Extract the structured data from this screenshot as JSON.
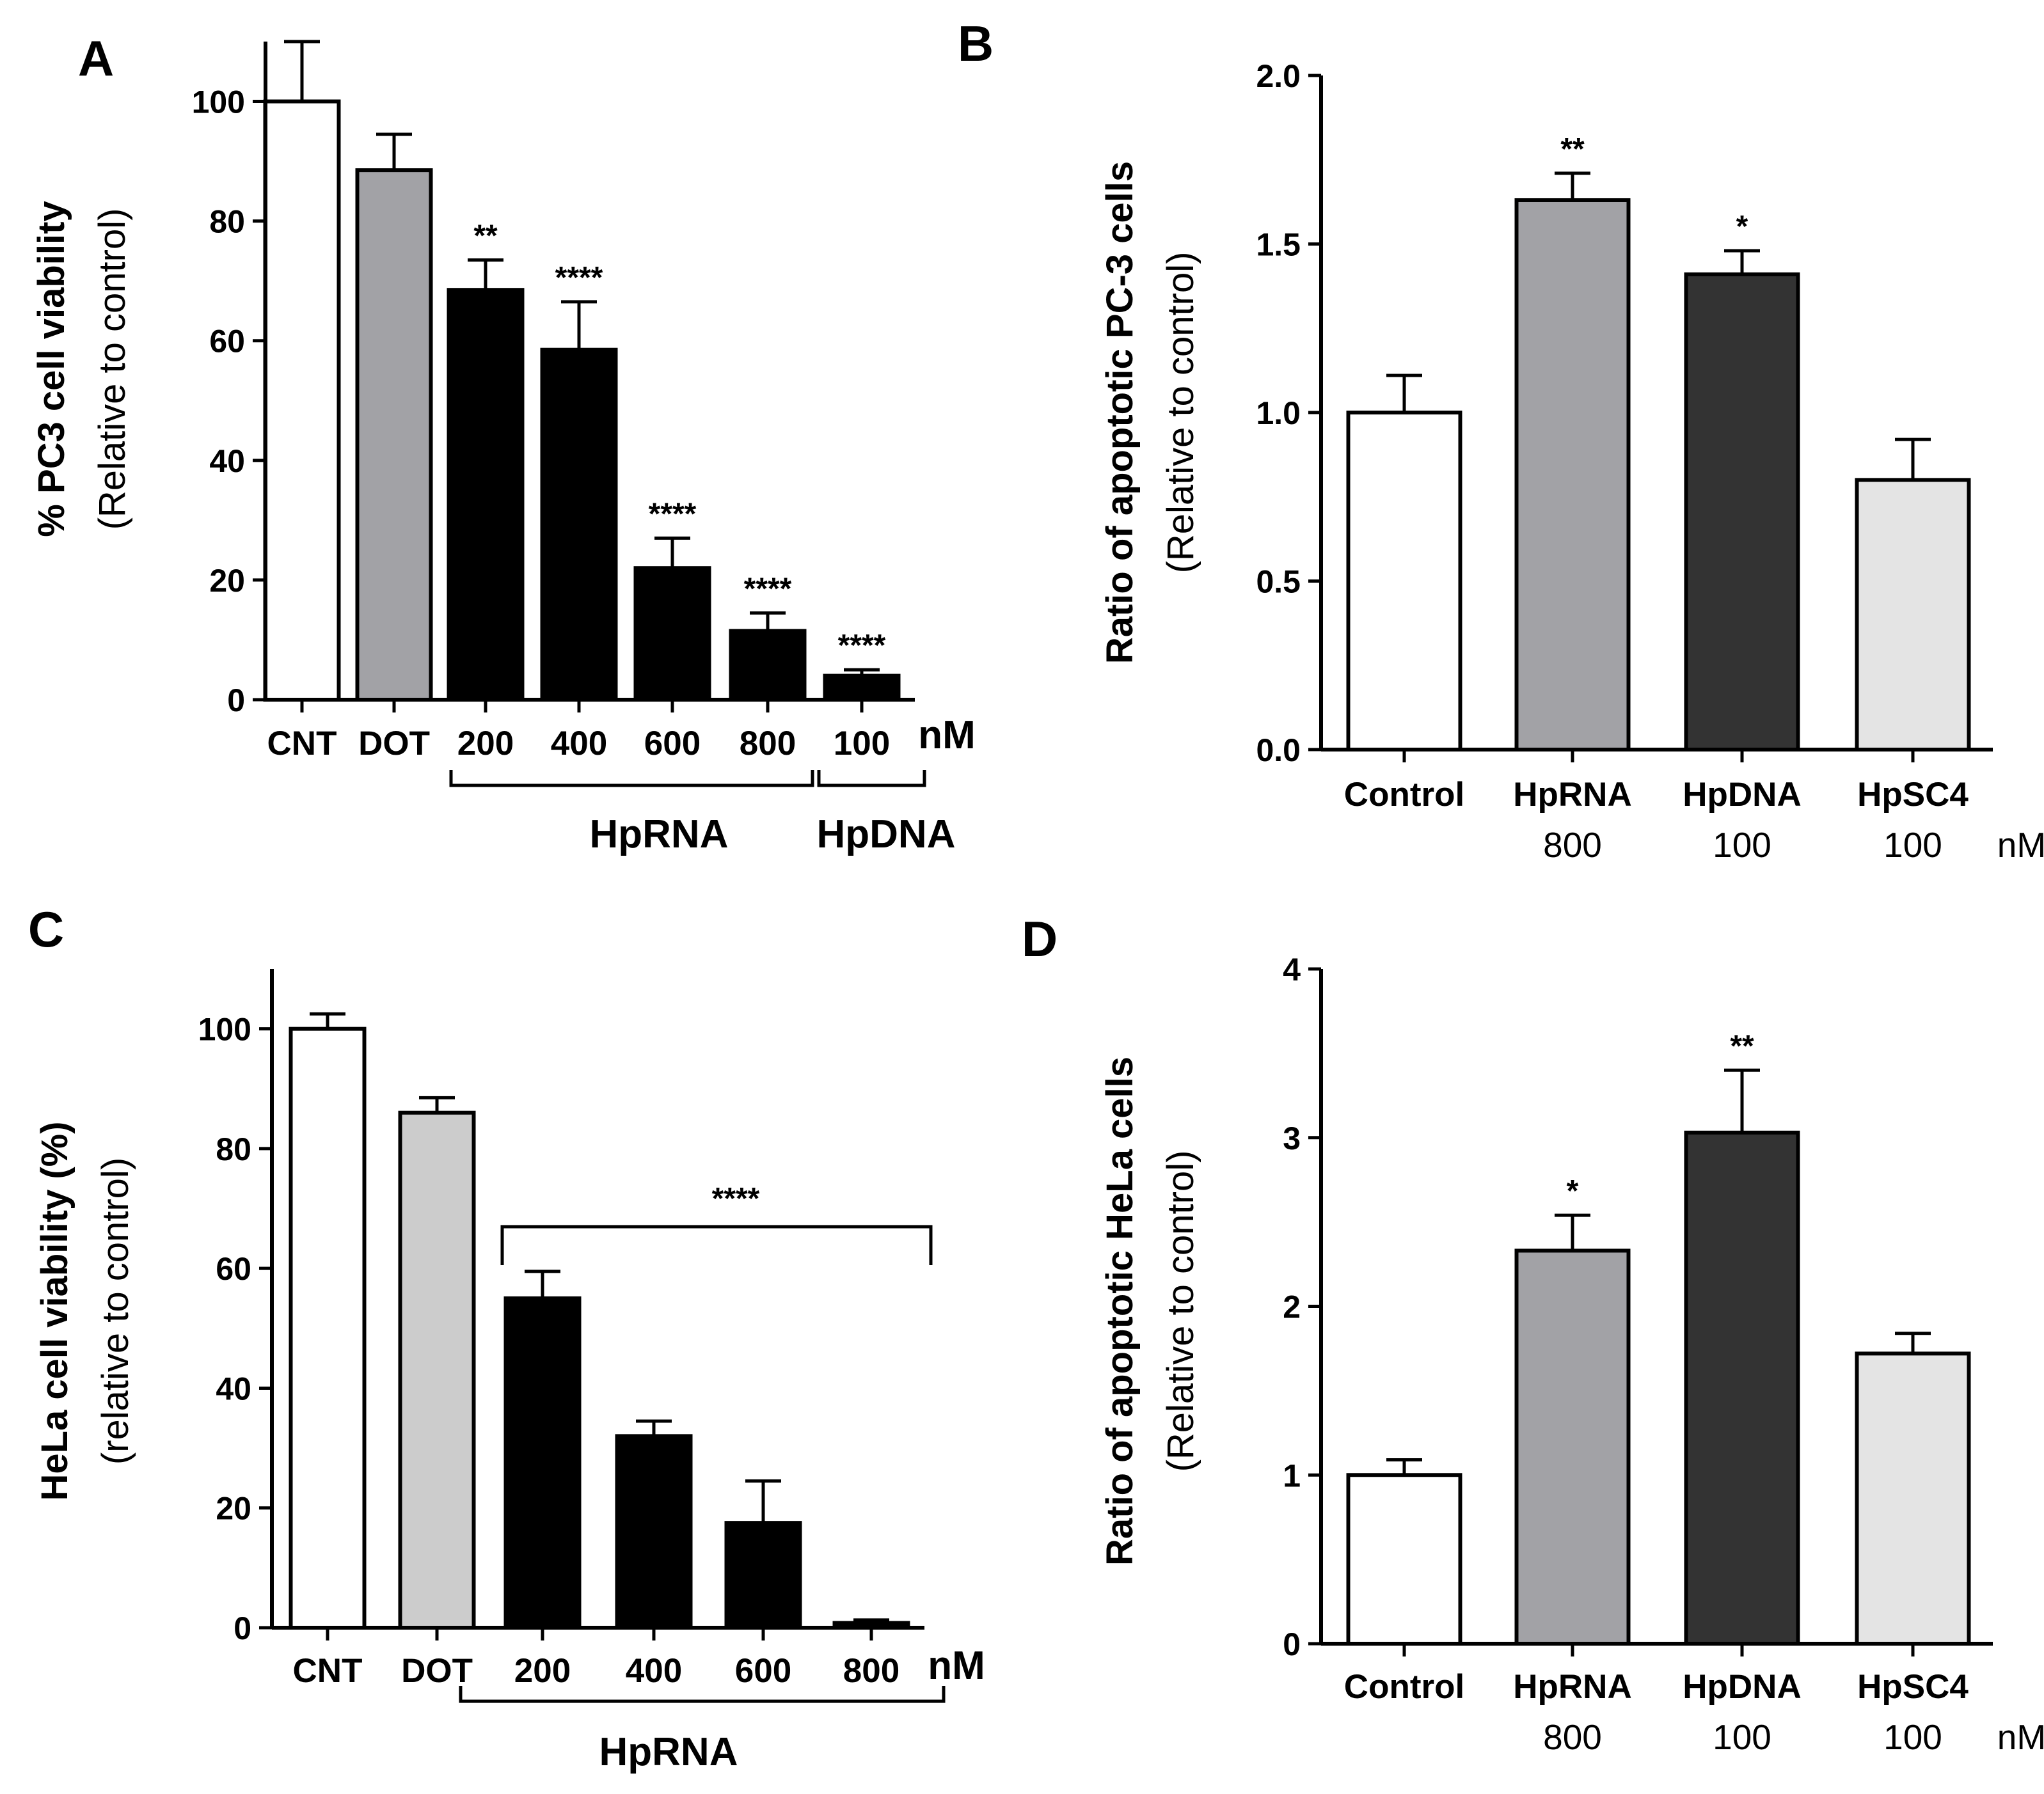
{
  "chart_data": [
    {
      "panel_label": "A",
      "type": "bar",
      "ylabel_bold": "% PC3 cell viability",
      "ylabel_sub": "(Relative to control)",
      "ylim": [
        0,
        110
      ],
      "yticks": [
        0,
        20,
        40,
        60,
        80,
        100
      ],
      "categories": [
        "CNT",
        "DOT",
        "200",
        "400",
        "600",
        "800",
        "100"
      ],
      "values": [
        100,
        88.5,
        68.5,
        58.5,
        22,
        11.5,
        4
      ],
      "errors": [
        10,
        6,
        5,
        8,
        5,
        3,
        1
      ],
      "significance": [
        "",
        "",
        "**",
        "****",
        "****",
        "****",
        "****"
      ],
      "colors": [
        "#ffffff",
        "#a2a2a6",
        "#000000",
        "#000000",
        "#000000",
        "#000000",
        "#000000"
      ],
      "unit": "nM",
      "groups": [
        {
          "label": "HpRNA",
          "from": 2,
          "to": 5
        },
        {
          "label": "HpDNA",
          "from": 6,
          "to": 6
        }
      ]
    },
    {
      "panel_label": "B",
      "type": "bar",
      "ylabel_bold": "Ratio of apoptotic PC-3  cells",
      "ylabel_sub": "(Relative to control)",
      "ylim": [
        0,
        2.0
      ],
      "yticks": [
        "0.0",
        "0.5",
        "1.0",
        "1.5",
        "2.0"
      ],
      "categories": [
        "Control",
        "HpRNA",
        "HpDNA",
        "HpSC4"
      ],
      "concentrations": [
        "",
        "800",
        "100",
        "100"
      ],
      "values": [
        1.0,
        1.63,
        1.41,
        0.8
      ],
      "errors": [
        0.11,
        0.08,
        0.07,
        0.12
      ],
      "significance": [
        "",
        "**",
        "*",
        ""
      ],
      "colors": [
        "#ffffff",
        "#a2a2a6",
        "#333333",
        "#e4e4e4"
      ],
      "unit": "nM"
    },
    {
      "panel_label": "C",
      "type": "bar",
      "ylabel_bold": "HeLa cell viability (%)",
      "ylabel_sub": "(relative to control)",
      "ylim": [
        0,
        110
      ],
      "yticks": [
        0,
        20,
        40,
        60,
        80,
        100
      ],
      "categories": [
        "CNT",
        "DOT",
        "200",
        "400",
        "600",
        "800"
      ],
      "values": [
        100,
        86,
        55,
        32,
        17.5,
        0.8
      ],
      "errors": [
        2.5,
        2.5,
        4.5,
        2.5,
        7,
        0.5
      ],
      "significance_bracket": "****",
      "colors": [
        "#ffffff",
        "#cccccc",
        "#000000",
        "#000000",
        "#000000",
        "#000000"
      ],
      "unit": "nM",
      "groups": [
        {
          "label": "HpRNA",
          "from": 2,
          "to": 5
        }
      ]
    },
    {
      "panel_label": "D",
      "type": "bar",
      "ylabel_bold": "Ratio of apoptotic HeLa cells",
      "ylabel_sub": "(Relative to control)",
      "ylim": [
        0,
        4
      ],
      "yticks": [
        "0",
        "1",
        "2",
        "3",
        "4"
      ],
      "categories": [
        "Control",
        "HpRNA",
        "HpDNA",
        "HpSC4"
      ],
      "concentrations": [
        "",
        "800",
        "100",
        "100"
      ],
      "values": [
        1.0,
        2.33,
        3.03,
        1.72
      ],
      "errors": [
        0.09,
        0.21,
        0.37,
        0.12
      ],
      "significance": [
        "",
        "*",
        "**",
        ""
      ],
      "colors": [
        "#ffffff",
        "#a2a2a6",
        "#333333",
        "#e4e4e4"
      ],
      "unit": "nM"
    }
  ]
}
